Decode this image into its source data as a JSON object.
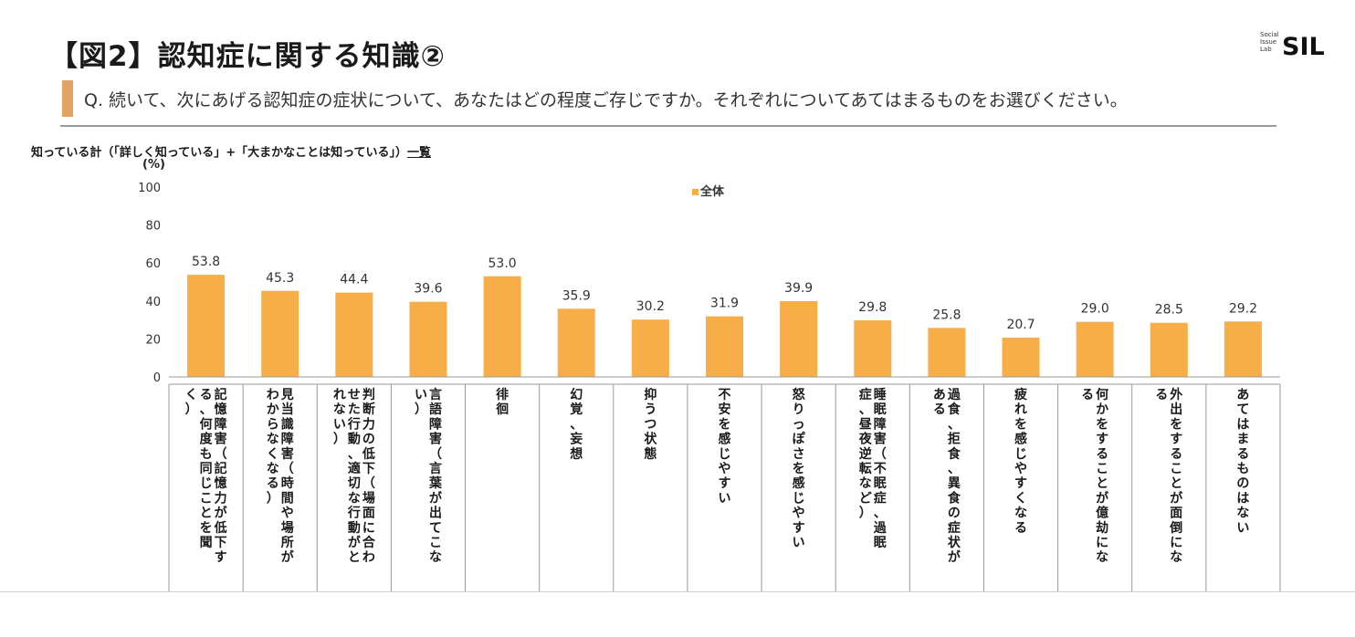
{
  "header": {
    "title": "【図2】認知症に関する知識②",
    "logo_small": [
      "Social",
      "Issue",
      "Lab"
    ],
    "logo_big": "SIL"
  },
  "question": "Q. 続いて、次にあげる認知症の症状について、あなたはどの程度ご存じですか。それぞれについてあてはまるものをお選びください。",
  "subtitle_main": "知っている計（「詳しく知っている」+「大まかなことは知っている」）",
  "subtitle_tail": "一覧",
  "colors": {
    "bar": "#F7AE48",
    "accent": "#E3A264"
  },
  "chart_data": {
    "type": "bar",
    "title": "知っている計（「詳しく知っている」+「大まかなことは知っている」）一覧",
    "ylabel": "(%)",
    "ylim": [
      0,
      100
    ],
    "yticks": [
      "100",
      "80",
      "60",
      "40",
      "20",
      "0"
    ],
    "legend": "top-center",
    "series": [
      {
        "name": "全体",
        "values": [
          53.8,
          45.3,
          44.4,
          39.6,
          53.0,
          35.9,
          30.2,
          31.9,
          39.9,
          29.8,
          25.8,
          20.7,
          29.0,
          28.5,
          29.2
        ]
      }
    ],
    "value_labels": [
      "53.8",
      "45.3",
      "44.4",
      "39.6",
      "53.0",
      "35.9",
      "30.2",
      "31.9",
      "39.9",
      "29.8",
      "25.8",
      "20.7",
      "29.0",
      "28.5",
      "29.2"
    ],
    "categories": [
      [
        "記憶障害（記憶力が低下す",
        "る、何度も同じことを聞",
        "く）"
      ],
      [
        "見当識障害（時間や場所が",
        "わからなくなる）"
      ],
      [
        "判断力の低下（場面に合わ",
        "せた行動、適切な行動がと",
        "れない）"
      ],
      [
        "言語障害（言葉が出てこな",
        "い）"
      ],
      [
        "徘徊"
      ],
      [
        "幻覚、妄想"
      ],
      [
        "抑うつ状態"
      ],
      [
        "不安を感じやすい"
      ],
      [
        "怒りっぽさを感じやすい"
      ],
      [
        "睡眠障害（不眠症、過眠",
        "症、昼夜逆転など）"
      ],
      [
        "過食、拒食、異食の症状が",
        "ある"
      ],
      [
        "疲れを感じやすくなる"
      ],
      [
        "何かをすることが億劫にな",
        "る"
      ],
      [
        "外出をすることが面倒にな",
        "る"
      ],
      [
        "あてはまるものはない"
      ]
    ]
  }
}
